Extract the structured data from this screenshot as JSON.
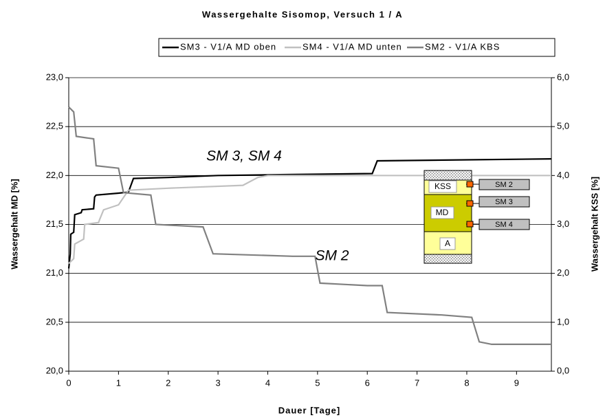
{
  "chart_data": {
    "type": "line",
    "title": "Wassergehalte Sisomop, Versuch 1 / A",
    "xlabel": "Dauer [Tage]",
    "ylabel": "Wassergehalt MD [%]",
    "y2label": "Wassergehalt KSS [%]",
    "xlim": [
      0,
      9.7
    ],
    "xticks": [
      0,
      1,
      2,
      3,
      4,
      5,
      6,
      7,
      8,
      9
    ],
    "ylim": [
      20,
      23
    ],
    "yticks": [
      {
        "value": 20,
        "label": "20,0"
      },
      {
        "value": 20.5,
        "label": "20,5"
      },
      {
        "value": 21,
        "label": "21,0"
      },
      {
        "value": 21.5,
        "label": "21,5"
      },
      {
        "value": 22,
        "label": "22,0"
      },
      {
        "value": 22.5,
        "label": "22,5"
      },
      {
        "value": 23,
        "label": "23,0"
      }
    ],
    "y2lim": [
      0,
      6
    ],
    "y2ticks": [
      {
        "value": 0,
        "label": "0,0"
      },
      {
        "value": 1,
        "label": "1,0"
      },
      {
        "value": 2,
        "label": "2,0"
      },
      {
        "value": 3,
        "label": "3,0"
      },
      {
        "value": 4,
        "label": "4,0"
      },
      {
        "value": 5,
        "label": "5,0"
      },
      {
        "value": 6,
        "label": "6,0"
      }
    ],
    "grid": true,
    "series": [
      {
        "name": "SM3 - V1/A MD oben",
        "color": "#000000",
        "x": [
          0,
          0.03,
          0.04,
          0.1,
          0.12,
          0.25,
          0.27,
          0.5,
          0.52,
          0.55,
          1.0,
          1.2,
          1.3,
          2.0,
          3.0,
          4.5,
          6.1,
          6.2,
          9.7
        ],
        "values": [
          21.05,
          21.2,
          21.4,
          21.42,
          21.6,
          21.62,
          21.65,
          21.66,
          21.78,
          21.8,
          21.82,
          21.83,
          21.97,
          21.98,
          22.0,
          22.01,
          22.02,
          22.15,
          22.17
        ]
      },
      {
        "name": "SM4 - V1/A MD unten",
        "color": "#c0c0c0",
        "x": [
          0,
          0.1,
          0.12,
          0.3,
          0.32,
          0.6,
          0.62,
          0.7,
          1.0,
          1.2,
          2.0,
          3.5,
          3.8,
          4.0,
          9.7
        ],
        "values": [
          21.1,
          21.15,
          21.3,
          21.35,
          21.5,
          21.52,
          21.55,
          21.65,
          21.7,
          21.85,
          21.87,
          21.9,
          21.98,
          22.0,
          22.0
        ],
        "axis": "y"
      },
      {
        "name": "SM2 - V1/A KBS",
        "color": "#808080",
        "axis": "y2",
        "x": [
          0,
          0.1,
          0.15,
          0.5,
          0.55,
          1.0,
          1.1,
          1.65,
          1.75,
          2.7,
          2.9,
          4.5,
          4.95,
          5.05,
          6.0,
          6.3,
          6.4,
          7.5,
          8.1,
          8.25,
          8.5,
          9.7
        ],
        "values": [
          5.4,
          5.3,
          4.8,
          4.75,
          4.2,
          4.15,
          3.65,
          3.6,
          3.0,
          2.95,
          2.4,
          2.35,
          2.35,
          1.8,
          1.75,
          1.75,
          1.2,
          1.15,
          1.1,
          0.6,
          0.55,
          0.55
        ]
      }
    ],
    "annotations": [
      "SM 3, SM 4",
      "SM 2"
    ],
    "inset": {
      "layers": [
        "KSS",
        "MD",
        "A"
      ],
      "sensors": [
        "SM 2",
        "SM 3",
        "SM 4"
      ]
    }
  }
}
